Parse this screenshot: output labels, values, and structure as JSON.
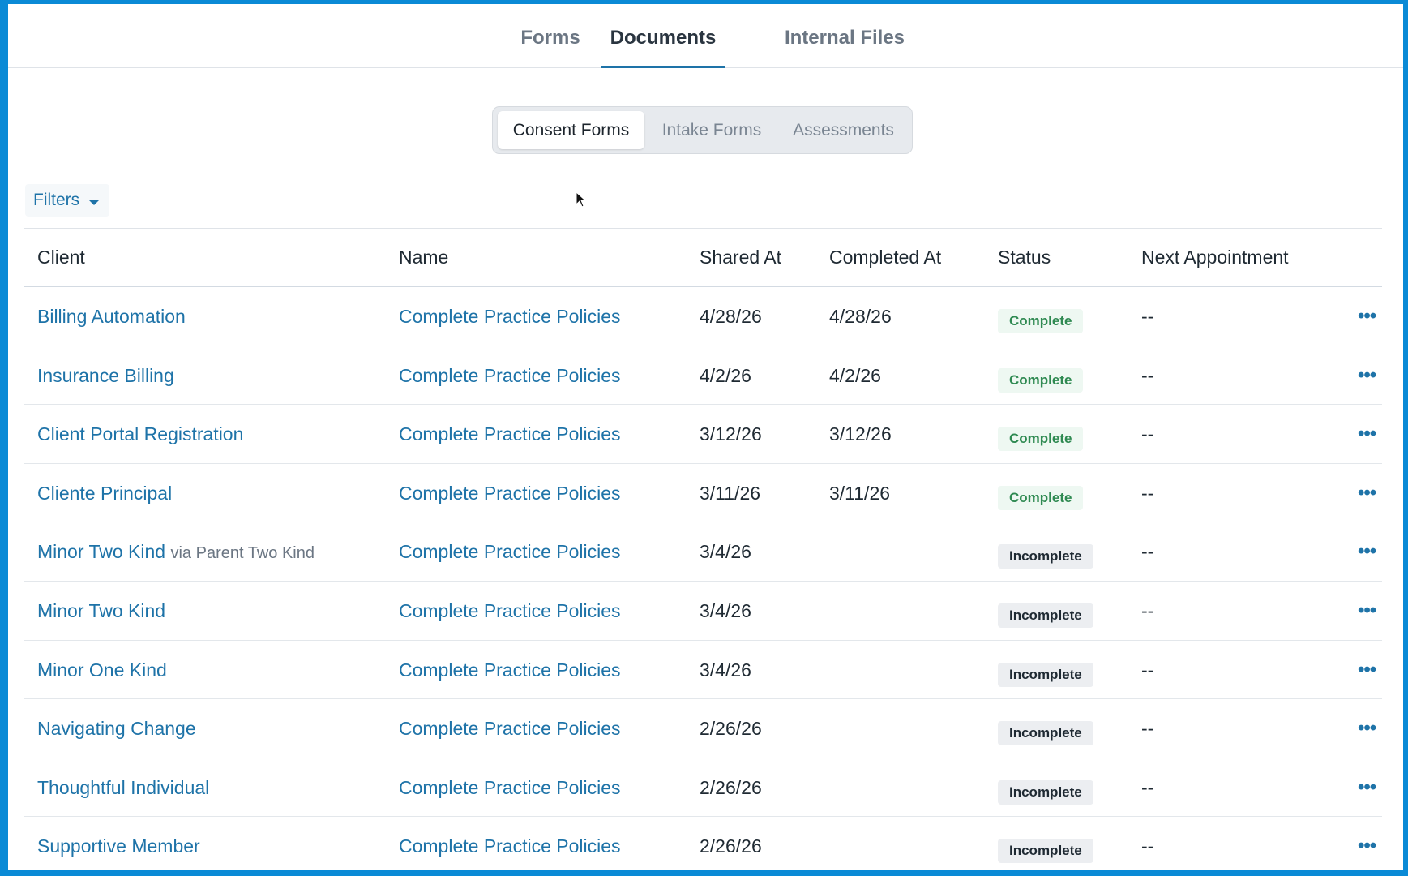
{
  "top_tabs": [
    {
      "label": "Forms"
    },
    {
      "label": "Documents",
      "active": true
    },
    {
      "label": "Internal Files"
    }
  ],
  "segments": [
    {
      "label": "Consent Forms",
      "active": true
    },
    {
      "label": "Intake Forms"
    },
    {
      "label": "Assessments"
    }
  ],
  "filters_label": "Filters",
  "table": {
    "headers": [
      "Client",
      "Name",
      "Shared At",
      "Completed At",
      "Status",
      "Next Appointment"
    ],
    "rows": [
      {
        "client": "Billing Automation",
        "via": "",
        "name": "Complete Practice Policies",
        "shared": "4/28/26",
        "completed": "4/28/26",
        "status": "Complete",
        "next": "--"
      },
      {
        "client": "Insurance Billing",
        "via": "",
        "name": "Complete Practice Policies",
        "shared": "4/2/26",
        "completed": "4/2/26",
        "status": "Complete",
        "next": "--"
      },
      {
        "client": "Client Portal Registration",
        "via": "",
        "name": "Complete Practice Policies",
        "shared": "3/12/26",
        "completed": "3/12/26",
        "status": "Complete",
        "next": "--"
      },
      {
        "client": "Cliente Principal",
        "via": "",
        "name": "Complete Practice Policies",
        "shared": "3/11/26",
        "completed": "3/11/26",
        "status": "Complete",
        "next": "--"
      },
      {
        "client": "Minor Two Kind",
        "via": "via Parent Two Kind",
        "name": "Complete Practice Policies",
        "shared": "3/4/26",
        "completed": "",
        "status": "Incomplete",
        "next": "--"
      },
      {
        "client": "Minor Two Kind",
        "via": "",
        "name": "Complete Practice Policies",
        "shared": "3/4/26",
        "completed": "",
        "status": "Incomplete",
        "next": "--"
      },
      {
        "client": "Minor One Kind",
        "via": "",
        "name": "Complete Practice Policies",
        "shared": "3/4/26",
        "completed": "",
        "status": "Incomplete",
        "next": "--"
      },
      {
        "client": "Navigating Change",
        "via": "",
        "name": "Complete Practice Policies",
        "shared": "2/26/26",
        "completed": "",
        "status": "Incomplete",
        "next": "--"
      },
      {
        "client": "Thoughtful Individual",
        "via": "",
        "name": "Complete Practice Policies",
        "shared": "2/26/26",
        "completed": "",
        "status": "Incomplete",
        "next": "--"
      },
      {
        "client": "Supportive Member",
        "via": "",
        "name": "Complete Practice Policies",
        "shared": "2/26/26",
        "completed": "",
        "status": "Incomplete",
        "next": "--"
      }
    ]
  },
  "more_label": "•••",
  "colors": {
    "link": "#1e73a8",
    "frame_border": "#0a8ad6",
    "complete_bg": "#eef8f2",
    "complete_text": "#2f8a52",
    "incomplete_bg": "#eceef1"
  },
  "icons": {
    "filter_caret": "caret-down-icon",
    "row_actions": "more-horizontal-icon",
    "cursor": "mouse-pointer-icon"
  }
}
